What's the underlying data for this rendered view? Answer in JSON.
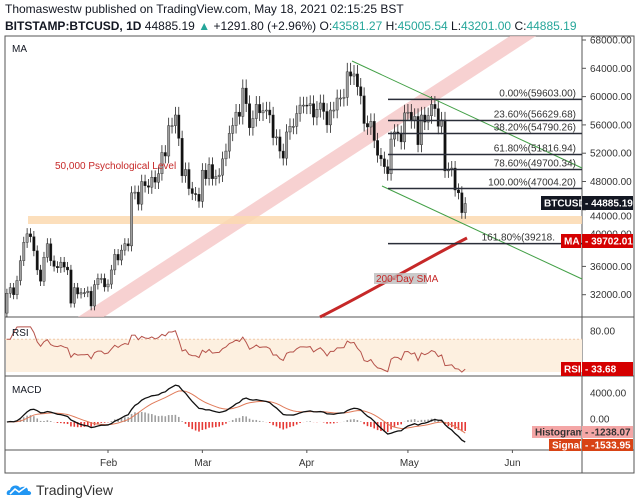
{
  "header": {
    "line1": "Thomaswestw published on TradingView.com, May 18, 2021 02:15:25 BST",
    "symbol": "BITSTAMP:BTCUSD, 1D",
    "last": "44885.19",
    "change": "+1291.80 (+2.96%)",
    "o_label": "O:",
    "o": "43581.27",
    "h_label": "H:",
    "h": "45005.54",
    "l_label": "L:",
    "l": "43201.00",
    "c_label": "C:",
    "c": "44885.19"
  },
  "colors": {
    "up": "#9e9e9e",
    "down": "#111111",
    "fib": "#2a2e39",
    "channel": "#43a047",
    "sma": "#c62828",
    "band_pink": "#f4c2c2",
    "band_orange": "#fcd9b0",
    "rsi": "#b5524a",
    "macd": "#111111",
    "signal": "#e07b5a",
    "hist_pos": "#9e9e9e",
    "hist_neg": "#e53935",
    "tag_black": "#131722",
    "tag_red": "#d50000",
    "tag_hist": "#f4a6a6",
    "tag_signal": "#d84315"
  },
  "chart_data": {
    "type": "candlestick",
    "title": "BITSTAMP:BTCUSD, 1D",
    "start_date": "2021-01-02",
    "first_open": 29400,
    "closes": [
      32200,
      33000,
      32000,
      34000,
      36800,
      39400,
      40600,
      40200,
      38200,
      35500,
      33900,
      37300,
      39200,
      36800,
      36000,
      35800,
      36600,
      35900,
      35500,
      30800,
      33000,
      32100,
      32300,
      32300,
      32500,
      30400,
      33400,
      34300,
      34300,
      33100,
      33500,
      35500,
      37700,
      36900,
      38300,
      39200,
      38900,
      46400,
      46500,
      44800,
      48000,
      47400,
      47200,
      48600,
      47900,
      49100,
      52100,
      51600,
      55900,
      55900,
      57400,
      54100,
      48800,
      49700,
      47000,
      46300,
      46200,
      45200,
      49600,
      48400,
      50400,
      48400,
      48700,
      48900,
      51200,
      52300,
      54800,
      55900,
      57800,
      57200,
      61200,
      59000,
      55600,
      56900,
      58900,
      57700,
      58000,
      58100,
      57400,
      54200,
      54300,
      52300,
      51300,
      55000,
      55800,
      55800,
      57600,
      58800,
      58800,
      58700,
      59000,
      57100,
      58200,
      59100,
      57900,
      56000,
      58100,
      58100,
      59800,
      59800,
      59900,
      63500,
      62900,
      63200,
      61400,
      60100,
      56200,
      55700,
      56500,
      53800,
      51700,
      51200,
      50100,
      49100,
      54000,
      55000,
      54800,
      53600,
      57700,
      57800,
      56600,
      57200,
      53200,
      57400,
      56400,
      57300,
      58900,
      58300,
      55800,
      56700,
      49500,
      49700,
      49900,
      46800,
      46400,
      43600,
      44885.19
    ],
    "y_ticks": [
      "68000.00",
      "64000.00",
      "60000.00",
      "56000.00",
      "52000.00",
      "48000.00",
      "44000.00",
      "40000.00",
      "36000.00",
      "32000.00"
    ],
    "ylim": [
      30500,
      68600
    ],
    "x_ticks": [
      "Feb",
      "Mar",
      "Apr",
      "May",
      "Jun"
    ],
    "pane_label": "MA",
    "annotations": {
      "psych": "50,000 Psychological Level",
      "sma": "200-Day SMA"
    },
    "fib_levels": [
      {
        "label": "0.00%(59603.00)",
        "value": 59603
      },
      {
        "label": "23.60%(56629.68)",
        "value": 56629.68
      },
      {
        "label": "38.20%(54790.26)",
        "value": 54790.26
      },
      {
        "label": "61.80%(51816.94)",
        "value": 51816.94
      },
      {
        "label": "78.60%(49700.34)",
        "value": 49700.34
      },
      {
        "label": "100.00%(47004.20)",
        "value": 47004.2
      },
      {
        "label": "161.80%(39218.",
        "value": 39218
      }
    ],
    "price_tag": {
      "name": "BTCUSD",
      "value": "44885.19"
    },
    "ma_tag": {
      "name": "MA",
      "value": "39702.01"
    },
    "rsi": {
      "label": "RSI",
      "ticks": [
        "80.00"
      ],
      "tag_name": "RSI",
      "tag_value": "33.68",
      "band": [
        30,
        70
      ]
    },
    "macd": {
      "label": "MACD",
      "ticks": [
        "4000.00",
        "0.00"
      ],
      "hist_name": "Histogram",
      "hist_value": "-1238.07",
      "signal_name": "Signal",
      "signal_value": "-1533.95"
    }
  },
  "footer": {
    "brand": "TradingView"
  }
}
